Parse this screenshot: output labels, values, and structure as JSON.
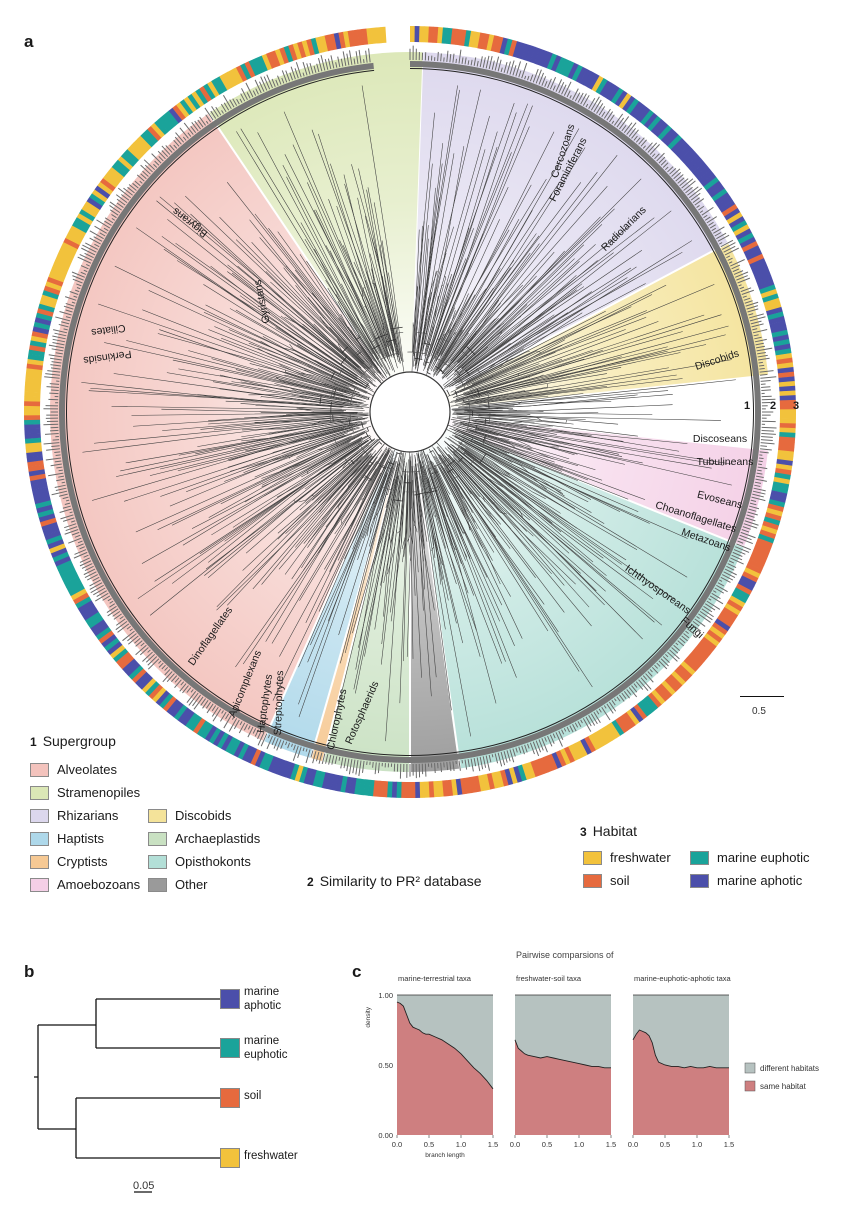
{
  "panels": {
    "a": "a",
    "b": "b",
    "c": "c"
  },
  "colors": {
    "alveolates": "#f3c3bd",
    "stramenopiles": "#dbe7b6",
    "rhizarians": "#dcd7ed",
    "haptists": "#aed8ea",
    "cryptists": "#f6c994",
    "amoebozoans": "#f4cfe6",
    "discobids": "#f4e39a",
    "archaeplastids": "#c9e1c2",
    "opisthokonts": "#b3dfd7",
    "other": "#9a9a9a",
    "freshwater": "#f2c23c",
    "soil": "#e66a3e",
    "marine_euphotic": "#1aa39a",
    "marine_aphotic": "#4b4faa",
    "density_different": "#b6c2c0",
    "density_same": "#ce7f80"
  },
  "tree": {
    "scale_bar": "0.5",
    "ring_labels": [
      "1",
      "2",
      "3"
    ],
    "clade_labels": [
      "Gyristans",
      "Bigyrans",
      "Cercozoans",
      "Foraminiferans",
      "Radiolarians",
      "Discobids",
      "Ciliates",
      "Perkinsids",
      "Discoseans",
      "Tubulineans",
      "Evoseans",
      "Choanoflagellates",
      "Metazoans",
      "Ichthyosporeans",
      "Fungi",
      "Rotosphaerids",
      "Chlorophytes",
      "Streptophytes",
      "Haptophytes",
      "Apicomplexans",
      "Dinoflagellates"
    ]
  },
  "legend_supergroup": {
    "num": "1",
    "title": "Supergroup",
    "items": [
      {
        "label": "Alveolates",
        "key": "alveolates"
      },
      {
        "label": "Stramenopiles",
        "key": "stramenopiles"
      },
      {
        "label": "Rhizarians",
        "key": "rhizarians"
      },
      {
        "label": "Haptists",
        "key": "haptists"
      },
      {
        "label": "Cryptists",
        "key": "cryptists"
      },
      {
        "label": "Amoebozoans",
        "key": "amoebozoans"
      },
      {
        "label": "Discobids",
        "key": "discobids"
      },
      {
        "label": "Archaeplastids",
        "key": "archaeplastids"
      },
      {
        "label": "Opisthokonts",
        "key": "opisthokonts"
      },
      {
        "label": "Other",
        "key": "other"
      }
    ]
  },
  "legend_similarity": {
    "num": "2",
    "title": "Similarity to PR² database"
  },
  "legend_habitat": {
    "num": "3",
    "title": "Habitat",
    "items": [
      {
        "label": "freshwater",
        "key": "freshwater"
      },
      {
        "label": "marine euphotic",
        "key": "marine_euphotic"
      },
      {
        "label": "soil",
        "key": "soil"
      },
      {
        "label": "marine aphotic",
        "key": "marine_aphotic"
      }
    ]
  },
  "panel_b": {
    "leaves": [
      {
        "label": "marine\naphotic",
        "key": "marine_aphotic"
      },
      {
        "label": "marine\neuphotic",
        "key": "marine_euphotic"
      },
      {
        "label": "soil",
        "key": "soil"
      },
      {
        "label": "freshwater",
        "key": "freshwater"
      }
    ],
    "scale_bar": "0.05"
  },
  "chart_data": {
    "type": "area",
    "title": "Pairwise comparsions of",
    "xlabel": "branch length",
    "ylabel": "density",
    "xlim": [
      0,
      1.5
    ],
    "ylim": [
      0,
      1
    ],
    "x_ticks": [
      "0.0",
      "0.5",
      "1.0",
      "1.5"
    ],
    "y_ticks": [
      "0.00",
      "0.50",
      "1.00"
    ],
    "legend": [
      {
        "label": "different habitats",
        "key": "density_different"
      },
      {
        "label": "same habitat",
        "key": "density_same"
      }
    ],
    "legend_position": "right",
    "facets": [
      {
        "name": "marine-terrestrial taxa",
        "x": [
          0,
          0.05,
          0.1,
          0.15,
          0.2,
          0.25,
          0.3,
          0.35,
          0.4,
          0.45,
          0.5,
          0.6,
          0.7,
          0.8,
          0.9,
          1.0,
          1.1,
          1.2,
          1.3,
          1.4,
          1.5
        ],
        "same_habitat": [
          0.95,
          0.94,
          0.92,
          0.86,
          0.8,
          0.77,
          0.76,
          0.75,
          0.73,
          0.72,
          0.72,
          0.7,
          0.68,
          0.65,
          0.62,
          0.58,
          0.53,
          0.48,
          0.44,
          0.39,
          0.33
        ]
      },
      {
        "name": "freshwater-soil taxa",
        "x": [
          0,
          0.05,
          0.1,
          0.15,
          0.2,
          0.3,
          0.4,
          0.5,
          0.6,
          0.7,
          0.8,
          0.9,
          1.0,
          1.1,
          1.2,
          1.3,
          1.4,
          1.5
        ],
        "same_habitat": [
          0.68,
          0.62,
          0.6,
          0.58,
          0.57,
          0.56,
          0.55,
          0.56,
          0.55,
          0.54,
          0.53,
          0.52,
          0.51,
          0.5,
          0.49,
          0.49,
          0.48,
          0.48
        ]
      },
      {
        "name": "marine-euphotic-aphotic taxa",
        "x": [
          0,
          0.05,
          0.1,
          0.15,
          0.2,
          0.25,
          0.3,
          0.35,
          0.4,
          0.5,
          0.6,
          0.7,
          0.8,
          0.9,
          1.0,
          1.1,
          1.2,
          1.3,
          1.4,
          1.5
        ],
        "same_habitat": [
          0.68,
          0.72,
          0.75,
          0.74,
          0.73,
          0.71,
          0.66,
          0.57,
          0.52,
          0.5,
          0.49,
          0.49,
          0.48,
          0.49,
          0.48,
          0.48,
          0.49,
          0.48,
          0.48,
          0.48
        ]
      }
    ]
  }
}
